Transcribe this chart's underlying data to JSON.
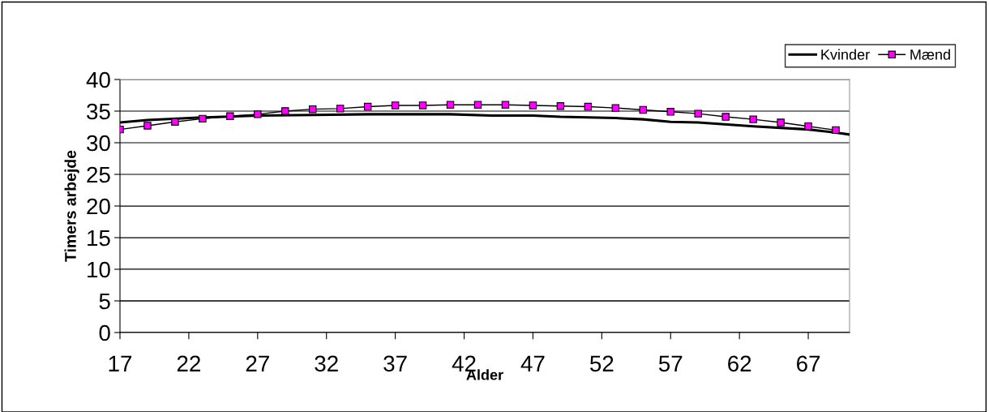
{
  "chart_data": {
    "type": "line",
    "xlabel": "Alder",
    "ylabel": "Timers arbejde",
    "xlim": [
      17,
      70
    ],
    "xticks": [
      17,
      22,
      27,
      32,
      37,
      42,
      47,
      52,
      57,
      62,
      67
    ],
    "ylim": [
      0,
      40
    ],
    "yticks": [
      0,
      5,
      10,
      15,
      20,
      25,
      30,
      35,
      40
    ],
    "grid": "y",
    "legend": "top right",
    "series": [
      {
        "name": "Kvinder",
        "color": "#000000",
        "marker": "none",
        "x": [
          17,
          19,
          23,
          27,
          31,
          35,
          41,
          44,
          47,
          49,
          53,
          55,
          57,
          59,
          63,
          67,
          69,
          70
        ],
        "values": [
          33.2,
          33.6,
          34.0,
          34.3,
          34.4,
          34.5,
          34.5,
          34.3,
          34.3,
          34.1,
          33.9,
          33.7,
          33.3,
          33.2,
          32.6,
          32.1,
          31.6,
          31.3
        ]
      },
      {
        "name": "Mænd",
        "color": "#ff00ff",
        "marker": "square",
        "x": [
          17,
          19,
          21,
          23,
          25,
          27,
          29,
          31,
          33,
          35,
          37,
          39,
          41,
          43,
          45,
          47,
          49,
          51,
          53,
          55,
          57,
          59,
          61,
          63,
          65,
          67,
          69
        ],
        "values": [
          32.1,
          32.7,
          33.3,
          33.8,
          34.2,
          34.5,
          35.0,
          35.3,
          35.4,
          35.7,
          35.9,
          35.9,
          36.0,
          36.0,
          36.0,
          35.9,
          35.8,
          35.7,
          35.5,
          35.2,
          34.9,
          34.6,
          34.1,
          33.7,
          33.2,
          32.6,
          32.0
        ]
      }
    ]
  }
}
